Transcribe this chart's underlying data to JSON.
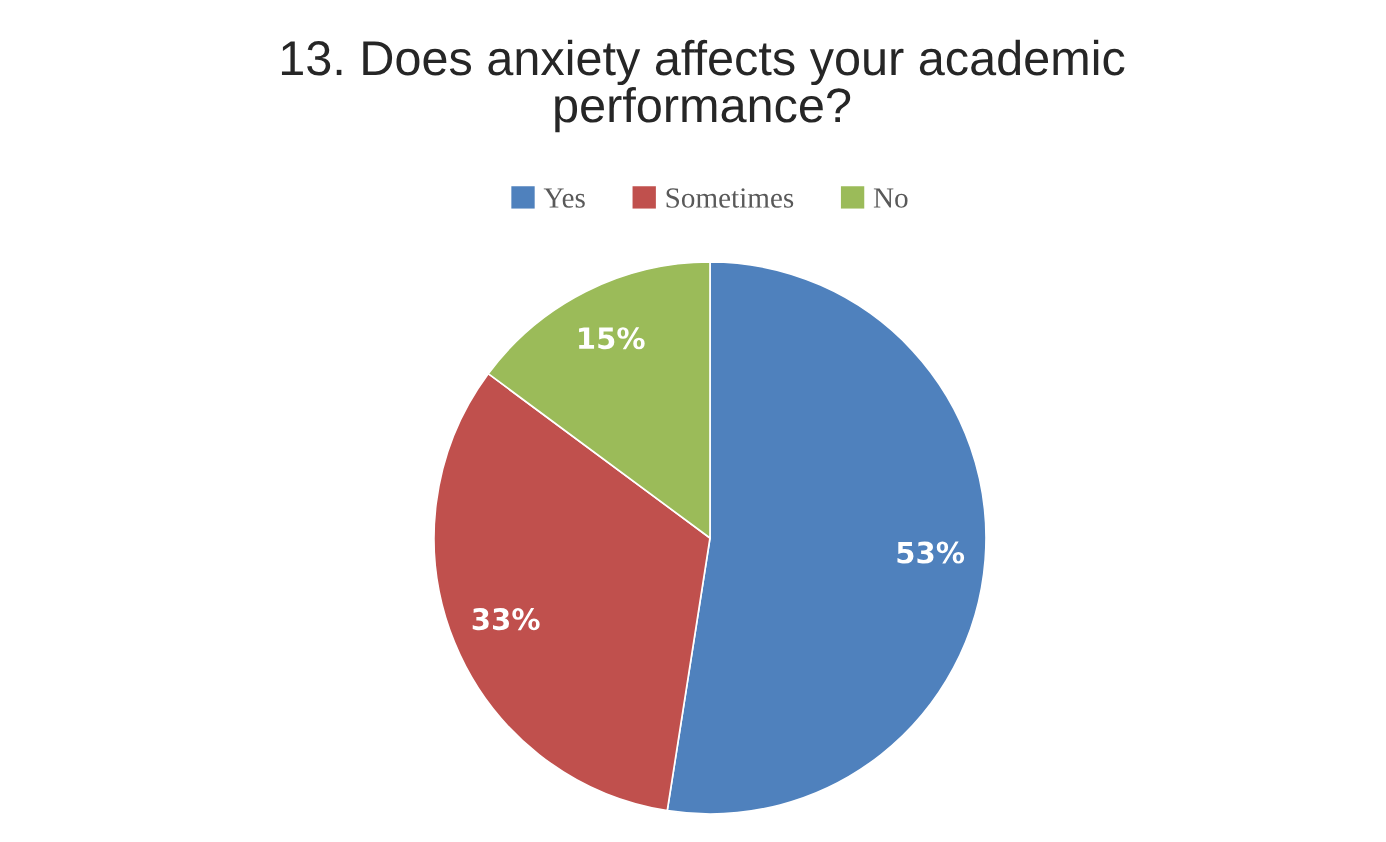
{
  "chart_data": {
    "type": "pie",
    "title": "13. Does anxiety affects your academic performance?",
    "categories": [
      "Yes",
      "Sometimes",
      "No"
    ],
    "values": [
      53,
      33,
      15
    ],
    "colors": [
      "#4f81bd",
      "#c0504d",
      "#9bbb59"
    ],
    "value_labels": [
      "53%",
      "33%",
      "15%"
    ],
    "legend": "top"
  }
}
